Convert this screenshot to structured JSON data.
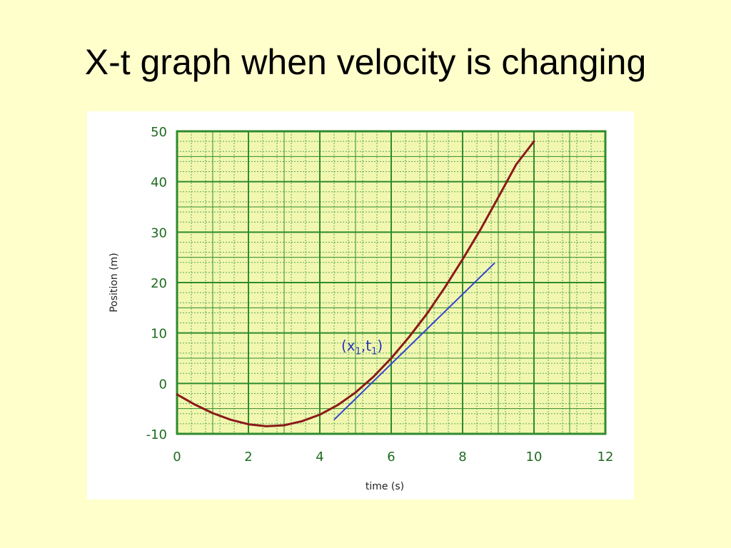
{
  "slide": {
    "title": "X-t graph when velocity is changing"
  },
  "colors": {
    "background": "#ffffcc",
    "plot_background": "#f2f7b0",
    "grid_major": "#2e8b2e",
    "grid_minor": "#59a859",
    "tick_label": "#1f6b1f",
    "curve": "#8b1a1a",
    "tangent": "#3344cc",
    "annotation": "#2a34b8"
  },
  "chart_data": {
    "type": "line",
    "title": "",
    "xlabel": "time (s)",
    "ylabel": "Position (m)",
    "xlim": [
      0,
      12
    ],
    "ylim": [
      -10,
      50
    ],
    "xticks": [
      "0",
      "2",
      "4",
      "6",
      "8",
      "10",
      "12"
    ],
    "yticks": [
      "50",
      "40",
      "30",
      "20",
      "10",
      "0",
      "-10"
    ],
    "grid": true,
    "series": [
      {
        "kind": "curve",
        "x": [
          0,
          0.5,
          1,
          1.5,
          2,
          2.5,
          3,
          3.5,
          4,
          4.5,
          5,
          5.5,
          6,
          6.5,
          7,
          7.5,
          8,
          8.5,
          9,
          9.5,
          10
        ],
        "y": [
          -2.2,
          -4.2,
          -5.9,
          -7.2,
          -8.1,
          -8.5,
          -8.3,
          -7.5,
          -6.2,
          -4.3,
          -1.8,
          1.3,
          5.0,
          9.2,
          13.8,
          19.0,
          24.6,
          30.5,
          36.9,
          43.4,
          48.0
        ]
      },
      {
        "kind": "tangent",
        "x": [
          4.4,
          8.9
        ],
        "y": [
          -7.2,
          23.9
        ]
      }
    ],
    "annotations": [
      {
        "text": "(x",
        "sub1": "1",
        "sep": ",t",
        "sub2": "1",
        "close": ")",
        "x": 4.6,
        "y": 6.5
      }
    ]
  }
}
